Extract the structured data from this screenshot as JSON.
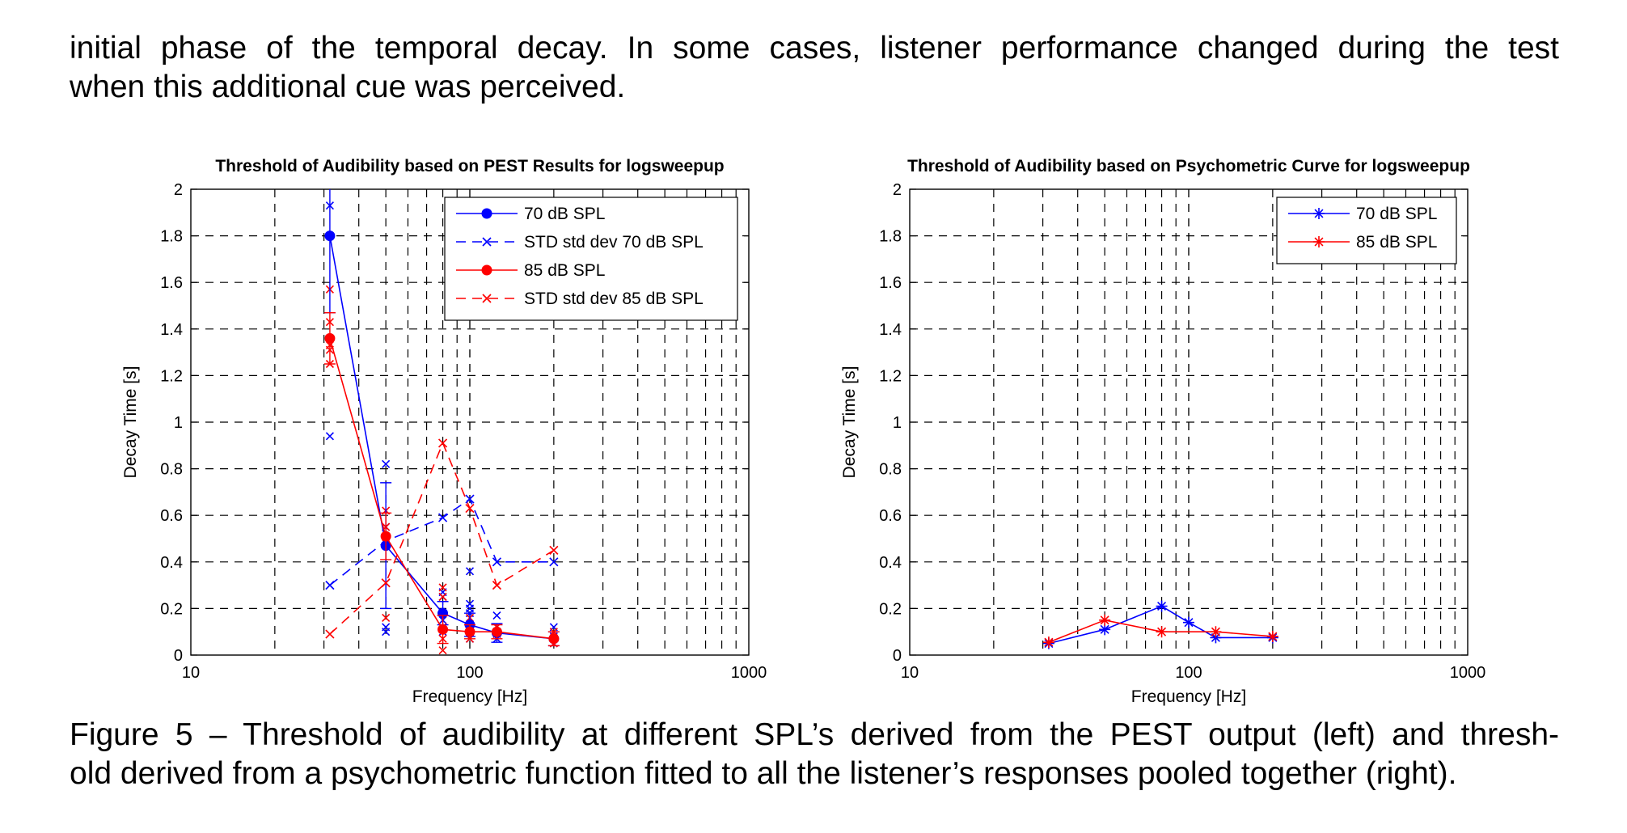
{
  "body_text": {
    "line1": "initial phase of the temporal decay. In some cases, listener performance changed during the test",
    "line2": "when this additional cue was perceived."
  },
  "caption": {
    "line1": "Figure 5 – Threshold of audibility at different SPL’s derived from the PEST output (left) and thresh-",
    "line2": "old derived from a psychometric function fitted to all the listener’s responses pooled together (right)."
  },
  "colors": {
    "blue": "#0000ff",
    "red": "#ff0000"
  },
  "chart_data": [
    {
      "type": "line",
      "title": "Threshold of Audibility based on PEST Results for logsweepup",
      "xlabel": "Frequency [Hz]",
      "ylabel": "Decay Time [s]",
      "xscale": "log",
      "xlim": [
        10,
        1000
      ],
      "ylim": [
        0,
        2
      ],
      "xticks": [
        10,
        100,
        1000
      ],
      "yticks": [
        0,
        0.2,
        0.4,
        0.6,
        0.8,
        1,
        1.2,
        1.4,
        1.6,
        1.8,
        2
      ],
      "ytick_labels": [
        "0",
        "0.2",
        "0.4",
        "0.6",
        "0.8",
        "1",
        "1.2",
        "1.4",
        "1.6",
        "1.8",
        "2"
      ],
      "xtick_labels": [
        "10",
        "100",
        "1000"
      ],
      "grid": true,
      "legend_position": "top-right",
      "x": [
        31.5,
        50,
        80,
        100,
        125,
        200
      ],
      "series": [
        {
          "name": "70 dB SPL",
          "color": "blue",
          "style": "solid",
          "marker": "dot",
          "values": [
            1.8,
            0.47,
            0.18,
            0.13,
            0.095,
            0.07
          ],
          "err": [
            0.33,
            0.27,
            0.05,
            0.05,
            0.04,
            0.03
          ]
        },
        {
          "name": "STD std dev 70 dB SPL",
          "color": "blue",
          "style": "dashed",
          "marker": "x",
          "values": [
            0.3,
            0.49,
            0.59,
            0.67,
            0.4,
            0.4
          ]
        },
        {
          "name": "85 dB SPL",
          "color": "red",
          "style": "solid",
          "marker": "dot",
          "values": [
            1.36,
            0.51,
            0.11,
            0.1,
            0.1,
            0.07
          ],
          "err": [
            0.11,
            0.1,
            0.06,
            0.03,
            0.03,
            0.03
          ]
        },
        {
          "name": "STD std dev 85 dB SPL",
          "color": "red",
          "style": "dashed",
          "marker": "x",
          "values": [
            0.09,
            0.31,
            0.91,
            0.63,
            0.3,
            0.45
          ]
        }
      ],
      "scatter": [
        {
          "color": "blue",
          "points": [
            [
              31.5,
              1.93
            ],
            [
              31.5,
              0.94
            ],
            [
              50,
              0.82
            ],
            [
              50,
              0.55
            ],
            [
              50,
              0.12
            ],
            [
              50,
              0.1
            ],
            [
              80,
              0.27
            ],
            [
              80,
              0.25
            ],
            [
              80,
              0.15
            ],
            [
              80,
              0.1
            ],
            [
              100,
              0.36
            ],
            [
              100,
              0.22
            ],
            [
              100,
              0.2
            ],
            [
              100,
              0.18
            ],
            [
              100,
              0.1
            ],
            [
              100,
              0.07
            ],
            [
              125,
              0.17
            ],
            [
              125,
              0.1
            ],
            [
              125,
              0.07
            ],
            [
              200,
              0.12
            ],
            [
              200,
              0.08
            ]
          ]
        },
        {
          "color": "red",
          "points": [
            [
              31.5,
              1.57
            ],
            [
              31.5,
              1.43
            ],
            [
              31.5,
              1.33
            ],
            [
              31.5,
              1.31
            ],
            [
              31.5,
              1.25
            ],
            [
              50,
              0.62
            ],
            [
              50,
              0.55
            ],
            [
              50,
              0.48
            ],
            [
              50,
              0.16
            ],
            [
              80,
              0.29
            ],
            [
              80,
              0.25
            ],
            [
              80,
              0.12
            ],
            [
              80,
              0.07
            ],
            [
              80,
              0.02
            ],
            [
              100,
              0.16
            ],
            [
              100,
              0.1
            ],
            [
              100,
              0.07
            ],
            [
              125,
              0.12
            ],
            [
              125,
              0.09
            ],
            [
              200,
              0.1
            ],
            [
              200,
              0.05
            ]
          ]
        }
      ]
    },
    {
      "type": "line",
      "title": "Threshold of Audibility based on Psychometric Curve for logsweepup",
      "xlabel": "Frequency [Hz]",
      "ylabel": "Decay Time [s]",
      "xscale": "log",
      "xlim": [
        10,
        1000
      ],
      "ylim": [
        0,
        2
      ],
      "xticks": [
        10,
        100,
        1000
      ],
      "yticks": [
        0,
        0.2,
        0.4,
        0.6,
        0.8,
        1,
        1.2,
        1.4,
        1.6,
        1.8,
        2
      ],
      "ytick_labels": [
        "0",
        "0.2",
        "0.4",
        "0.6",
        "0.8",
        "1",
        "1.2",
        "1.4",
        "1.6",
        "1.8",
        "2"
      ],
      "xtick_labels": [
        "10",
        "100",
        "1000"
      ],
      "grid": true,
      "legend_position": "top-right",
      "series": [
        {
          "name": "70 dB SPL",
          "color": "blue",
          "style": "solid",
          "marker": "asterisk",
          "x": [
            31.5,
            50,
            80,
            100,
            125,
            200
          ],
          "values": [
            0.05,
            0.11,
            0.21,
            0.14,
            0.075,
            0.075
          ]
        },
        {
          "name": "85 dB SPL",
          "color": "red",
          "style": "solid",
          "marker": "asterisk",
          "x": [
            31.5,
            50,
            80,
            125,
            200
          ],
          "values": [
            0.055,
            0.15,
            0.1,
            0.1,
            0.08
          ]
        }
      ]
    }
  ]
}
